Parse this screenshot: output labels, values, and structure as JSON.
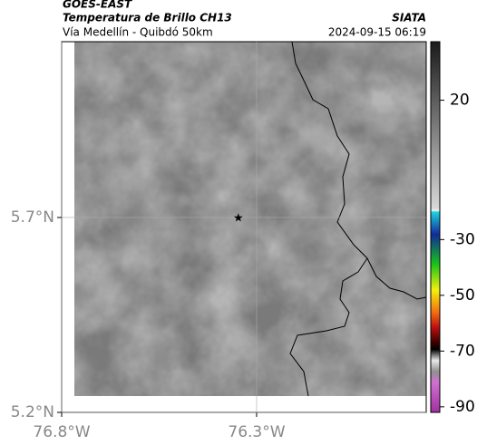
{
  "header": {
    "source": "GOES-EAST",
    "product": "Temperatura de Brillo CH13",
    "agency": "SIATA",
    "region": "Vía Medellín - Quibdó 50km",
    "timestamp": "2024-09-15 06:19"
  },
  "map": {
    "xlim": [
      -76.8,
      -75.865
    ],
    "ylim": [
      5.2,
      6.151
    ],
    "xticks": [
      {
        "value": -76.8,
        "label": "76.8°W"
      },
      {
        "value": -76.3,
        "label": "76.3°W"
      }
    ],
    "yticks": [
      {
        "value": 5.2,
        "label": "5.2°N"
      },
      {
        "value": 5.7,
        "label": "5.7°N"
      }
    ],
    "station": {
      "lon": -76.347,
      "lat": 5.7
    }
  },
  "colorbar": {
    "lim": [
      -92,
      41
    ],
    "ticks": [
      20,
      -30,
      -50,
      -70,
      -90
    ]
  }
}
